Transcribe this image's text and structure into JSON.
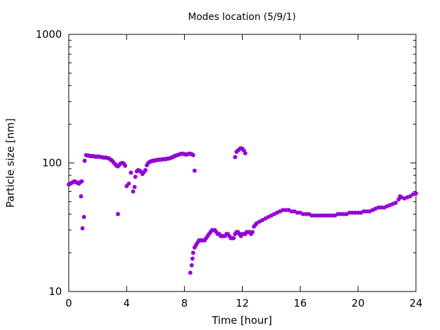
{
  "chart_data": {
    "type": "scatter",
    "title": "Modes location (5/9/1)",
    "xlabel": "Time [hour]",
    "ylabel": "Particle size [nm]",
    "xlim": [
      0,
      24
    ],
    "ylim": [
      10,
      1000
    ],
    "yscale": "log",
    "xticks": [
      0,
      4,
      8,
      12,
      16,
      20,
      24
    ],
    "xtick_labels": [
      "0",
      "4",
      "8",
      "12",
      "16",
      "20",
      "24"
    ],
    "yticks": [
      10,
      100,
      1000
    ],
    "ytick_labels": [
      "10",
      "100",
      "1000"
    ],
    "grid": false,
    "legend": "none",
    "marker_color": "#9400d3",
    "series": [
      {
        "points": [
          [
            0.0,
            68
          ],
          [
            0.1,
            69
          ],
          [
            0.2,
            70
          ],
          [
            0.3,
            71
          ],
          [
            0.4,
            72
          ],
          [
            0.5,
            71
          ],
          [
            0.6,
            70
          ],
          [
            0.7,
            69
          ],
          [
            0.8,
            71
          ],
          [
            0.9,
            72
          ],
          [
            0.85,
            55
          ],
          [
            0.95,
            31
          ],
          [
            1.05,
            38
          ],
          [
            1.1,
            104
          ],
          [
            1.2,
            115
          ],
          [
            1.3,
            114
          ],
          [
            1.4,
            114
          ],
          [
            1.5,
            113
          ],
          [
            1.6,
            113
          ],
          [
            1.7,
            113
          ],
          [
            1.8,
            112
          ],
          [
            1.9,
            112
          ],
          [
            2.0,
            112
          ],
          [
            2.1,
            112
          ],
          [
            2.2,
            111
          ],
          [
            2.3,
            111
          ],
          [
            2.4,
            110
          ],
          [
            2.5,
            110
          ],
          [
            2.6,
            110
          ],
          [
            2.7,
            109
          ],
          [
            2.8,
            108
          ],
          [
            2.9,
            106
          ],
          [
            3.0,
            104
          ],
          [
            3.1,
            101
          ],
          [
            3.2,
            98
          ],
          [
            3.3,
            95
          ],
          [
            3.4,
            94
          ],
          [
            3.5,
            97
          ],
          [
            3.6,
            99
          ],
          [
            3.7,
            100
          ],
          [
            3.8,
            99
          ],
          [
            3.9,
            95
          ],
          [
            3.4,
            40
          ],
          [
            4.0,
            66
          ],
          [
            4.15,
            69
          ],
          [
            4.3,
            84
          ],
          [
            4.45,
            60
          ],
          [
            4.55,
            65
          ],
          [
            4.6,
            78
          ],
          [
            4.7,
            86
          ],
          [
            4.8,
            88
          ],
          [
            4.9,
            87
          ],
          [
            5.0,
            85
          ],
          [
            5.1,
            82
          ],
          [
            5.2,
            85
          ],
          [
            5.3,
            88
          ],
          [
            5.4,
            96
          ],
          [
            5.5,
            100
          ],
          [
            5.6,
            102
          ],
          [
            5.7,
            103
          ],
          [
            5.8,
            104
          ],
          [
            5.9,
            104
          ],
          [
            6.0,
            105
          ],
          [
            6.1,
            105
          ],
          [
            6.2,
            106
          ],
          [
            6.3,
            106
          ],
          [
            6.4,
            106
          ],
          [
            6.5,
            107
          ],
          [
            6.6,
            107
          ],
          [
            6.7,
            107
          ],
          [
            6.8,
            108
          ],
          [
            6.9,
            108
          ],
          [
            7.0,
            109
          ],
          [
            7.1,
            110
          ],
          [
            7.2,
            111
          ],
          [
            7.3,
            113
          ],
          [
            7.4,
            114
          ],
          [
            7.5,
            115
          ],
          [
            7.6,
            116
          ],
          [
            7.7,
            117
          ],
          [
            7.8,
            118
          ],
          [
            7.9,
            118
          ],
          [
            8.0,
            117
          ],
          [
            8.1,
            116
          ],
          [
            8.2,
            117
          ],
          [
            8.3,
            118
          ],
          [
            8.4,
            118
          ],
          [
            8.5,
            117
          ],
          [
            8.6,
            115
          ],
          [
            8.7,
            87
          ],
          [
            11.5,
            111
          ],
          [
            11.6,
            122
          ],
          [
            11.7,
            125
          ],
          [
            11.8,
            128
          ],
          [
            11.9,
            130
          ],
          [
            12.0,
            129
          ],
          [
            12.1,
            125
          ],
          [
            12.2,
            119
          ],
          [
            8.4,
            14
          ],
          [
            8.5,
            16
          ],
          [
            8.55,
            18
          ],
          [
            8.6,
            20
          ],
          [
            8.7,
            22
          ],
          [
            8.8,
            23
          ],
          [
            8.9,
            24
          ],
          [
            9.0,
            25
          ],
          [
            9.1,
            25
          ],
          [
            9.2,
            25
          ],
          [
            9.3,
            25
          ],
          [
            9.4,
            25
          ],
          [
            9.5,
            26
          ],
          [
            9.6,
            27
          ],
          [
            9.7,
            28
          ],
          [
            9.8,
            29
          ],
          [
            9.9,
            30
          ],
          [
            10.0,
            30
          ],
          [
            10.1,
            30
          ],
          [
            10.2,
            29
          ],
          [
            10.3,
            28
          ],
          [
            10.4,
            28
          ],
          [
            10.5,
            27
          ],
          [
            10.6,
            27
          ],
          [
            10.7,
            27
          ],
          [
            10.8,
            27
          ],
          [
            10.9,
            28
          ],
          [
            11.0,
            28
          ],
          [
            11.1,
            27
          ],
          [
            11.2,
            26
          ],
          [
            11.3,
            26
          ],
          [
            11.4,
            26
          ],
          [
            11.5,
            28
          ],
          [
            11.6,
            29
          ],
          [
            11.7,
            29
          ],
          [
            11.8,
            28
          ],
          [
            11.9,
            27
          ],
          [
            12.0,
            28
          ],
          [
            12.1,
            28
          ],
          [
            12.2,
            28
          ],
          [
            12.3,
            29
          ],
          [
            12.4,
            29
          ],
          [
            12.5,
            29
          ],
          [
            12.6,
            28
          ],
          [
            12.7,
            29
          ],
          [
            12.8,
            32
          ],
          [
            12.9,
            33
          ],
          [
            13.0,
            34
          ],
          [
            13.2,
            35
          ],
          [
            13.4,
            36
          ],
          [
            13.6,
            37
          ],
          [
            13.8,
            38
          ],
          [
            14.0,
            39
          ],
          [
            14.2,
            40
          ],
          [
            14.4,
            41
          ],
          [
            14.6,
            42
          ],
          [
            14.8,
            43
          ],
          [
            15.0,
            43
          ],
          [
            15.2,
            43
          ],
          [
            15.4,
            42
          ],
          [
            15.6,
            42
          ],
          [
            15.8,
            41
          ],
          [
            16.0,
            41
          ],
          [
            16.2,
            40
          ],
          [
            16.4,
            40
          ],
          [
            16.6,
            40
          ],
          [
            16.8,
            39
          ],
          [
            17.0,
            39
          ],
          [
            17.2,
            39
          ],
          [
            17.4,
            39
          ],
          [
            17.6,
            39
          ],
          [
            17.8,
            39
          ],
          [
            18.0,
            39
          ],
          [
            18.2,
            39
          ],
          [
            18.4,
            39
          ],
          [
            18.6,
            40
          ],
          [
            18.8,
            40
          ],
          [
            19.0,
            40
          ],
          [
            19.2,
            40
          ],
          [
            19.4,
            41
          ],
          [
            19.6,
            41
          ],
          [
            19.8,
            41
          ],
          [
            20.0,
            41
          ],
          [
            20.2,
            41
          ],
          [
            20.4,
            42
          ],
          [
            20.6,
            42
          ],
          [
            20.8,
            42
          ],
          [
            21.0,
            43
          ],
          [
            21.2,
            44
          ],
          [
            21.4,
            45
          ],
          [
            21.6,
            45
          ],
          [
            21.8,
            45
          ],
          [
            22.0,
            46
          ],
          [
            22.2,
            47
          ],
          [
            22.4,
            48
          ],
          [
            22.6,
            49
          ],
          [
            22.8,
            52
          ],
          [
            22.9,
            55
          ],
          [
            23.0,
            54
          ],
          [
            23.2,
            53
          ],
          [
            23.4,
            54
          ],
          [
            23.6,
            55
          ],
          [
            23.8,
            57
          ],
          [
            24.0,
            58
          ]
        ]
      }
    ]
  }
}
